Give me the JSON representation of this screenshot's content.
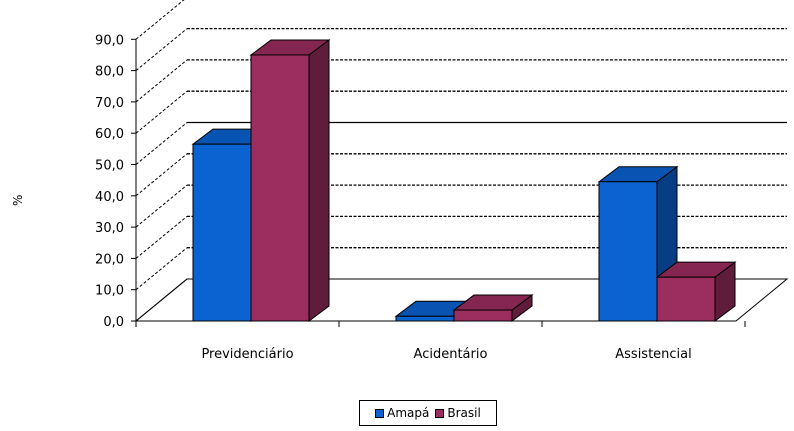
{
  "chart_data": {
    "type": "bar",
    "categories": [
      "Previdenciário",
      "Acidentário",
      "Assistencial"
    ],
    "series": [
      {
        "name": "Amapá",
        "values": [
          56.5,
          1.5,
          44.5
        ],
        "color": "#0b63d1"
      },
      {
        "name": "Brasil",
        "values": [
          85.0,
          3.5,
          14.0
        ],
        "color": "#9b2d5f"
      }
    ],
    "ylabel": "%",
    "ylim": [
      0,
      90
    ],
    "yticks": [
      "0,0",
      "10,0",
      "20,0",
      "30,0",
      "40,0",
      "50,0",
      "60,0",
      "70,0",
      "80,0",
      "90,0"
    ],
    "grid": true,
    "legend_position": "bottom",
    "style": "3d-clustered-column"
  }
}
